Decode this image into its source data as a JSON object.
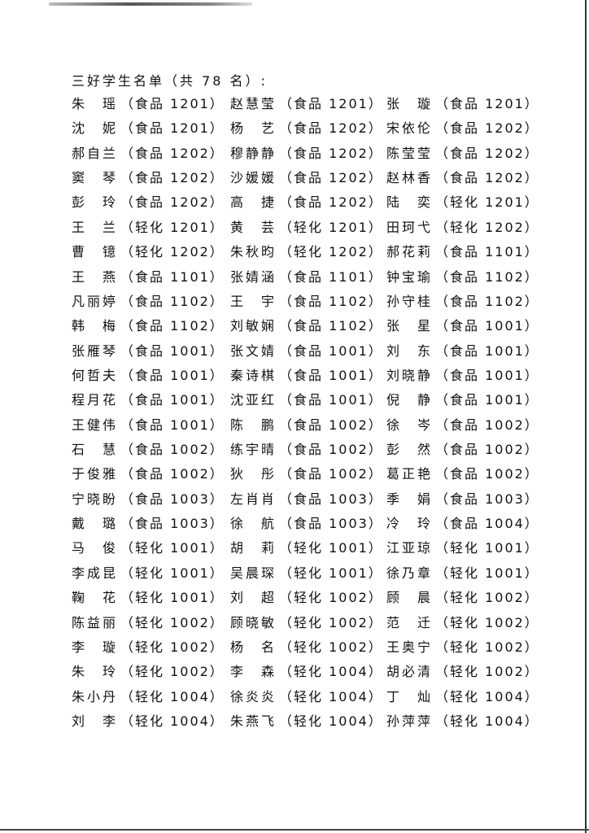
{
  "title": "三好学生名单（共 78 名）:",
  "students": [
    [
      [
        "朱瑶",
        "食品 1201"
      ],
      [
        "赵慧莹",
        "食品 1201"
      ],
      [
        "张璇",
        "食品 1201"
      ]
    ],
    [
      [
        "沈妮",
        "食品 1201"
      ],
      [
        "杨艺",
        "食品 1202"
      ],
      [
        "宋依伦",
        "食品 1202"
      ]
    ],
    [
      [
        "郝自兰",
        "食品 1202"
      ],
      [
        "穆静静",
        "食品 1202"
      ],
      [
        "陈莹莹",
        "食品 1202"
      ]
    ],
    [
      [
        "窦琴",
        "食品 1202"
      ],
      [
        "沙媛媛",
        "食品 1202"
      ],
      [
        "赵林香",
        "食品 1202"
      ]
    ],
    [
      [
        "彭玲",
        "食品 1202"
      ],
      [
        "高捷",
        "食品 1202"
      ],
      [
        "陆奕",
        "轻化 1201"
      ]
    ],
    [
      [
        "王兰",
        "轻化 1201"
      ],
      [
        "黄芸",
        "轻化 1201"
      ],
      [
        "田珂弋",
        "轻化 1202"
      ]
    ],
    [
      [
        "曹镱",
        "轻化 1202"
      ],
      [
        "朱秋昀",
        "轻化 1202"
      ],
      [
        "郝花莉",
        "食品 1101"
      ]
    ],
    [
      [
        "王燕",
        "食品 1101"
      ],
      [
        "张婧涵",
        "食品 1101"
      ],
      [
        "钟宝瑜",
        "食品 1102"
      ]
    ],
    [
      [
        "凡丽婷",
        "食品 1102"
      ],
      [
        "王宇",
        "食品 1102"
      ],
      [
        "孙守桂",
        "食品 1102"
      ]
    ],
    [
      [
        "韩梅",
        "食品 1102"
      ],
      [
        "刘敏娴",
        "食品 1102"
      ],
      [
        "张星",
        "食品 1001"
      ]
    ],
    [
      [
        "张雁琴",
        "食品 1001"
      ],
      [
        "张文婧",
        "食品 1001"
      ],
      [
        "刘东",
        "食品 1001"
      ]
    ],
    [
      [
        "何哲夫",
        "食品 1001"
      ],
      [
        "秦诗棋",
        "食品 1001"
      ],
      [
        "刘晓静",
        "食品 1001"
      ]
    ],
    [
      [
        "程月花",
        "食品 1001"
      ],
      [
        "沈亚红",
        "食品 1001"
      ],
      [
        "倪静",
        "食品 1001"
      ]
    ],
    [
      [
        "王健伟",
        "食品 1001"
      ],
      [
        "陈鹏",
        "食品 1002"
      ],
      [
        "徐岑",
        "食品 1002"
      ]
    ],
    [
      [
        "石慧",
        "食品 1002"
      ],
      [
        "练宇晴",
        "食品 1002"
      ],
      [
        "彭然",
        "食品 1002"
      ]
    ],
    [
      [
        "于俊雅",
        "食品 1002"
      ],
      [
        "狄彤",
        "食品 1002"
      ],
      [
        "葛正艳",
        "食品 1002"
      ]
    ],
    [
      [
        "宁晓盼",
        "食品 1003"
      ],
      [
        "左肖肖",
        "食品 1003"
      ],
      [
        "季娟",
        "食品 1003"
      ]
    ],
    [
      [
        "戴璐",
        "食品 1003"
      ],
      [
        "徐航",
        "食品 1003"
      ],
      [
        "冷玲",
        "食品 1004"
      ]
    ],
    [
      [
        "马俊",
        "轻化 1001"
      ],
      [
        "胡莉",
        "轻化 1001"
      ],
      [
        "江亚琼",
        "轻化 1001"
      ]
    ],
    [
      [
        "李成昆",
        "轻化 1001"
      ],
      [
        "吴晨琛",
        "轻化 1001"
      ],
      [
        "徐乃章",
        "轻化 1001"
      ]
    ],
    [
      [
        "鞠花",
        "轻化 1001"
      ],
      [
        "刘超",
        "轻化 1002"
      ],
      [
        "顾晨",
        "轻化 1002"
      ]
    ],
    [
      [
        "陈益丽",
        "轻化 1002"
      ],
      [
        "顾晓敏",
        "轻化 1002"
      ],
      [
        "范迁",
        "轻化 1002"
      ]
    ],
    [
      [
        "李璇",
        "轻化 1002"
      ],
      [
        "杨名",
        "轻化 1002"
      ],
      [
        "王奥宁",
        "轻化 1002"
      ]
    ],
    [
      [
        "朱玲",
        "轻化 1002"
      ],
      [
        "李森",
        "轻化 1004"
      ],
      [
        "胡必清",
        "轻化 1002"
      ]
    ],
    [
      [
        "朱小丹",
        "轻化 1004"
      ],
      [
        "徐炎炎",
        "轻化 1004"
      ],
      [
        "丁灿",
        "轻化 1004"
      ]
    ],
    [
      [
        "刘李",
        "轻化 1004"
      ],
      [
        "朱燕飞",
        "轻化 1004"
      ],
      [
        "孙萍萍",
        "轻化 1004"
      ]
    ]
  ]
}
